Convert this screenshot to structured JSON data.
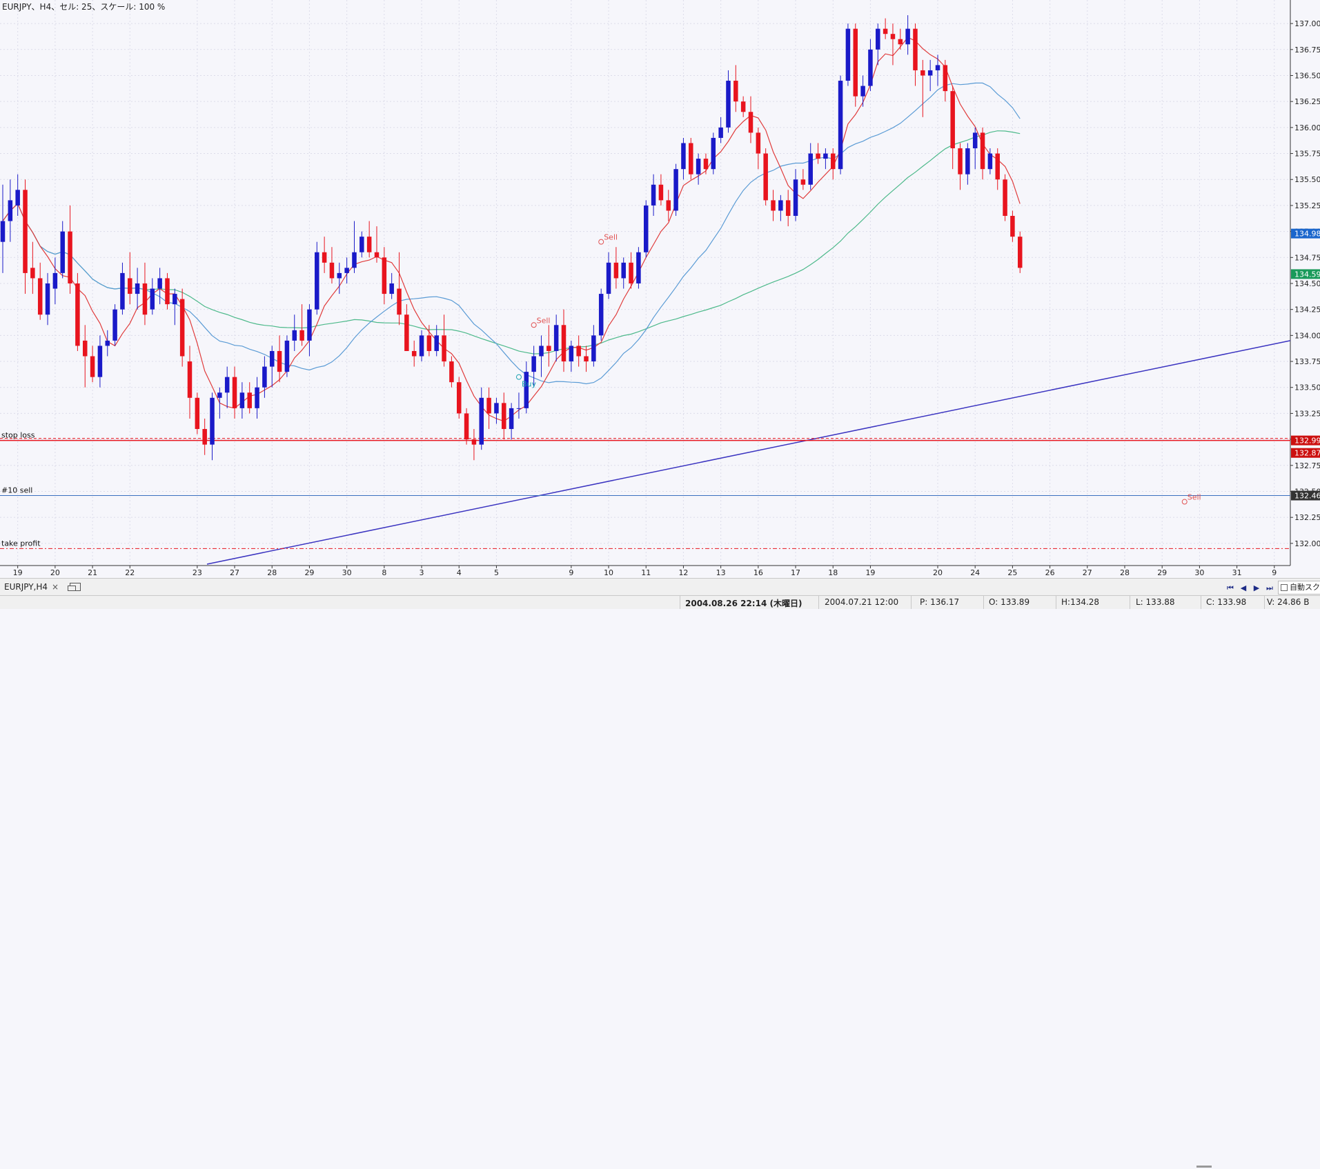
{
  "window": {
    "title": "EURJPY、H4、セル: 25、スケール: 100 %"
  },
  "tab": {
    "label": "EURJPY,H4",
    "close": "×"
  },
  "auto_scroll": {
    "label": "自動スクロール"
  },
  "nav": {
    "first": "⏮",
    "prev": "◀",
    "next": "▶",
    "last": "⏭"
  },
  "status": {
    "current_time": "2004.08.26 22:14 (木曜日)",
    "bar_time": "2004.07.21 12:00",
    "p": "P: 136.17",
    "o": "O: 133.89",
    "h": "H:134.28",
    "l": "L: 133.88",
    "c": "C: 133.98",
    "v": "V: 24.86 B"
  },
  "colors": {
    "background": "#f6f6fb",
    "grid": "#dcdcea",
    "bull": "#1a1ac8",
    "bear": "#e8141e",
    "ma_fast": "#e03c3c",
    "ma_mid": "#5a9bd5",
    "ma_slow": "#4cb98a",
    "trendline": "#3a33c0",
    "stop_loss": "#e8141e",
    "sell_order": "#3a6fbf",
    "take_profit": "#e8141e",
    "buy_signal": "#19a0b0",
    "sell_signal": "#e05050",
    "badge_cur": "#1a66cc",
    "badge_ma": "#1a9a5a",
    "badge_sl": "#cc1010",
    "badge_sell": "#333333"
  },
  "chart_data": {
    "type": "candlestick",
    "symbol": "EURJPY",
    "timeframe": "H4",
    "ylim": [
      131.8,
      137.16
    ],
    "y_ticks": [
      132.0,
      132.25,
      132.5,
      132.75,
      133.0,
      133.25,
      133.5,
      133.75,
      134.0,
      134.25,
      134.5,
      134.75,
      135.0,
      135.25,
      135.5,
      135.75,
      136.0,
      136.25,
      136.5,
      136.75,
      137.0
    ],
    "y_tick_labels": [
      "132.00",
      "132.25",
      "132.50",
      "132.75",
      "133.00",
      "133.25",
      "133.50",
      "133.75",
      "134.00",
      "134.25",
      "134.50",
      "134.75",
      "135.00",
      "135.25",
      "135.50",
      "135.75",
      "136.00",
      "136.25",
      "136.50",
      "136.75",
      "137.00"
    ],
    "x_labels": [
      {
        "label": "19",
        "bar": 2
      },
      {
        "label": "20",
        "bar": 7
      },
      {
        "label": "21",
        "bar": 12
      },
      {
        "label": "22",
        "bar": 17
      },
      {
        "label": "23",
        "bar": 26
      },
      {
        "label": "27",
        "bar": 31
      },
      {
        "label": "28",
        "bar": 36
      },
      {
        "label": "29",
        "bar": 41
      },
      {
        "label": "30",
        "bar": 46
      },
      {
        "label": "8",
        "bar": 51
      },
      {
        "label": "3",
        "bar": 56
      },
      {
        "label": "4",
        "bar": 61
      },
      {
        "label": "5",
        "bar": 66
      },
      {
        "label": "9",
        "bar": 76
      },
      {
        "label": "10",
        "bar": 81
      },
      {
        "label": "11",
        "bar": 86
      },
      {
        "label": "12",
        "bar": 91
      },
      {
        "label": "13",
        "bar": 96
      },
      {
        "label": "16",
        "bar": 101
      },
      {
        "label": "17",
        "bar": 106
      },
      {
        "label": "18",
        "bar": 111
      },
      {
        "label": "19",
        "bar": 116
      },
      {
        "label": "20",
        "bar": 125
      },
      {
        "label": "24",
        "bar": 130
      },
      {
        "label": "25",
        "bar": 135
      },
      {
        "label": "26",
        "bar": 140
      },
      {
        "label": "27",
        "bar": 145
      },
      {
        "label": "28",
        "bar": 150
      },
      {
        "label": "29",
        "bar": 155
      },
      {
        "label": "30",
        "bar": 160
      },
      {
        "label": "31",
        "bar": 165
      },
      {
        "label": "9",
        "bar": 170
      }
    ],
    "candles": [
      {
        "o": 134.9,
        "h": 135.45,
        "l": 134.6,
        "c": 135.1
      },
      {
        "o": 135.1,
        "h": 135.5,
        "l": 134.9,
        "c": 135.3
      },
      {
        "o": 135.25,
        "h": 135.55,
        "l": 135.15,
        "c": 135.4
      },
      {
        "o": 135.4,
        "h": 135.5,
        "l": 134.4,
        "c": 134.6
      },
      {
        "o": 134.65,
        "h": 134.9,
        "l": 134.4,
        "c": 134.55
      },
      {
        "o": 134.55,
        "h": 134.7,
        "l": 134.15,
        "c": 134.2
      },
      {
        "o": 134.2,
        "h": 134.6,
        "l": 134.1,
        "c": 134.5
      },
      {
        "o": 134.45,
        "h": 134.75,
        "l": 134.3,
        "c": 134.6
      },
      {
        "o": 134.6,
        "h": 135.1,
        "l": 134.55,
        "c": 135.0
      },
      {
        "o": 135.0,
        "h": 135.25,
        "l": 134.4,
        "c": 134.5
      },
      {
        "o": 134.5,
        "h": 134.6,
        "l": 133.85,
        "c": 133.9
      },
      {
        "o": 133.95,
        "h": 134.1,
        "l": 133.5,
        "c": 133.8
      },
      {
        "o": 133.8,
        "h": 133.9,
        "l": 133.55,
        "c": 133.6
      },
      {
        "o": 133.6,
        "h": 134.0,
        "l": 133.5,
        "c": 133.9
      },
      {
        "o": 133.9,
        "h": 134.05,
        "l": 133.8,
        "c": 133.95
      },
      {
        "o": 133.95,
        "h": 134.3,
        "l": 133.9,
        "c": 134.25
      },
      {
        "o": 134.25,
        "h": 134.7,
        "l": 134.2,
        "c": 134.6
      },
      {
        "o": 134.55,
        "h": 134.8,
        "l": 134.3,
        "c": 134.4
      },
      {
        "o": 134.4,
        "h": 134.65,
        "l": 134.25,
        "c": 134.5
      },
      {
        "o": 134.5,
        "h": 134.7,
        "l": 134.1,
        "c": 134.2
      },
      {
        "o": 134.25,
        "h": 134.55,
        "l": 134.2,
        "c": 134.45
      },
      {
        "o": 134.45,
        "h": 134.65,
        "l": 134.3,
        "c": 134.55
      },
      {
        "o": 134.55,
        "h": 134.6,
        "l": 134.25,
        "c": 134.3
      },
      {
        "o": 134.3,
        "h": 134.45,
        "l": 134.1,
        "c": 134.4
      },
      {
        "o": 134.35,
        "h": 134.45,
        "l": 133.7,
        "c": 133.8
      },
      {
        "o": 133.75,
        "h": 133.9,
        "l": 133.2,
        "c": 133.4
      },
      {
        "o": 133.4,
        "h": 133.45,
        "l": 133.05,
        "c": 133.1
      },
      {
        "o": 133.1,
        "h": 133.2,
        "l": 132.85,
        "c": 132.95
      },
      {
        "o": 132.95,
        "h": 133.45,
        "l": 132.8,
        "c": 133.4
      },
      {
        "o": 133.4,
        "h": 133.5,
        "l": 133.2,
        "c": 133.45
      },
      {
        "o": 133.45,
        "h": 133.7,
        "l": 133.3,
        "c": 133.6
      },
      {
        "o": 133.6,
        "h": 133.7,
        "l": 133.2,
        "c": 133.3
      },
      {
        "o": 133.3,
        "h": 133.55,
        "l": 133.2,
        "c": 133.45
      },
      {
        "o": 133.45,
        "h": 133.55,
        "l": 133.25,
        "c": 133.3
      },
      {
        "o": 133.3,
        "h": 133.6,
        "l": 133.2,
        "c": 133.5
      },
      {
        "o": 133.5,
        "h": 133.8,
        "l": 133.4,
        "c": 133.7
      },
      {
        "o": 133.7,
        "h": 133.9,
        "l": 133.5,
        "c": 133.85
      },
      {
        "o": 133.85,
        "h": 134.0,
        "l": 133.55,
        "c": 133.65
      },
      {
        "o": 133.65,
        "h": 134.0,
        "l": 133.6,
        "c": 133.95
      },
      {
        "o": 133.95,
        "h": 134.2,
        "l": 133.85,
        "c": 134.05
      },
      {
        "o": 134.05,
        "h": 134.3,
        "l": 133.9,
        "c": 133.95
      },
      {
        "o": 133.95,
        "h": 134.3,
        "l": 133.8,
        "c": 134.25
      },
      {
        "o": 134.25,
        "h": 134.9,
        "l": 134.2,
        "c": 134.8
      },
      {
        "o": 134.8,
        "h": 134.95,
        "l": 134.6,
        "c": 134.7
      },
      {
        "o": 134.7,
        "h": 134.85,
        "l": 134.5,
        "c": 134.55
      },
      {
        "o": 134.55,
        "h": 134.7,
        "l": 134.4,
        "c": 134.6
      },
      {
        "o": 134.6,
        "h": 134.75,
        "l": 134.5,
        "c": 134.65
      },
      {
        "o": 134.65,
        "h": 135.1,
        "l": 134.6,
        "c": 134.8
      },
      {
        "o": 134.8,
        "h": 135.0,
        "l": 134.75,
        "c": 134.95
      },
      {
        "o": 134.95,
        "h": 135.1,
        "l": 134.75,
        "c": 134.8
      },
      {
        "o": 134.8,
        "h": 135.05,
        "l": 134.7,
        "c": 134.75
      },
      {
        "o": 134.75,
        "h": 134.85,
        "l": 134.3,
        "c": 134.4
      },
      {
        "o": 134.4,
        "h": 134.6,
        "l": 134.35,
        "c": 134.5
      },
      {
        "o": 134.45,
        "h": 134.8,
        "l": 134.1,
        "c": 134.2
      },
      {
        "o": 134.2,
        "h": 134.3,
        "l": 133.85,
        "c": 133.85
      },
      {
        "o": 133.85,
        "h": 133.95,
        "l": 133.7,
        "c": 133.8
      },
      {
        "o": 133.8,
        "h": 134.05,
        "l": 133.75,
        "c": 134.0
      },
      {
        "o": 134.0,
        "h": 134.1,
        "l": 133.8,
        "c": 133.85
      },
      {
        "o": 133.85,
        "h": 134.1,
        "l": 133.8,
        "c": 134.0
      },
      {
        "o": 134.0,
        "h": 134.2,
        "l": 133.7,
        "c": 133.75
      },
      {
        "o": 133.75,
        "h": 133.8,
        "l": 133.5,
        "c": 133.55
      },
      {
        "o": 133.55,
        "h": 133.6,
        "l": 133.2,
        "c": 133.25
      },
      {
        "o": 133.25,
        "h": 133.3,
        "l": 132.95,
        "c": 133.0
      },
      {
        "o": 133.0,
        "h": 133.1,
        "l": 132.8,
        "c": 132.95
      },
      {
        "o": 132.95,
        "h": 133.5,
        "l": 132.9,
        "c": 133.4
      },
      {
        "o": 133.4,
        "h": 133.5,
        "l": 133.1,
        "c": 133.25
      },
      {
        "o": 133.25,
        "h": 133.4,
        "l": 133.15,
        "c": 133.35
      },
      {
        "o": 133.35,
        "h": 133.45,
        "l": 133.0,
        "c": 133.1
      },
      {
        "o": 133.1,
        "h": 133.35,
        "l": 133.0,
        "c": 133.3
      },
      {
        "o": 133.3,
        "h": 133.45,
        "l": 133.2,
        "c": 133.3
      },
      {
        "o": 133.3,
        "h": 133.75,
        "l": 133.25,
        "c": 133.65
      },
      {
        "o": 133.65,
        "h": 133.9,
        "l": 133.5,
        "c": 133.8
      },
      {
        "o": 133.8,
        "h": 134.0,
        "l": 133.6,
        "c": 133.9
      },
      {
        "o": 133.9,
        "h": 134.1,
        "l": 133.7,
        "c": 133.85
      },
      {
        "o": 133.85,
        "h": 134.2,
        "l": 133.75,
        "c": 134.1
      },
      {
        "o": 134.1,
        "h": 134.25,
        "l": 133.65,
        "c": 133.75
      },
      {
        "o": 133.75,
        "h": 133.95,
        "l": 133.65,
        "c": 133.9
      },
      {
        "o": 133.9,
        "h": 134.0,
        "l": 133.7,
        "c": 133.8
      },
      {
        "o": 133.8,
        "h": 133.9,
        "l": 133.65,
        "c": 133.75
      },
      {
        "o": 133.75,
        "h": 134.1,
        "l": 133.7,
        "c": 134.0
      },
      {
        "o": 134.0,
        "h": 134.45,
        "l": 133.95,
        "c": 134.4
      },
      {
        "o": 134.4,
        "h": 134.8,
        "l": 134.35,
        "c": 134.7
      },
      {
        "o": 134.7,
        "h": 134.85,
        "l": 134.45,
        "c": 134.55
      },
      {
        "o": 134.55,
        "h": 134.75,
        "l": 134.45,
        "c": 134.7
      },
      {
        "o": 134.7,
        "h": 134.8,
        "l": 134.45,
        "c": 134.5
      },
      {
        "o": 134.5,
        "h": 134.85,
        "l": 134.45,
        "c": 134.8
      },
      {
        "o": 134.8,
        "h": 135.3,
        "l": 134.75,
        "c": 135.25
      },
      {
        "o": 135.25,
        "h": 135.55,
        "l": 135.15,
        "c": 135.45
      },
      {
        "o": 135.45,
        "h": 135.55,
        "l": 135.25,
        "c": 135.3
      },
      {
        "o": 135.3,
        "h": 135.4,
        "l": 135.1,
        "c": 135.2
      },
      {
        "o": 135.2,
        "h": 135.65,
        "l": 135.15,
        "c": 135.6
      },
      {
        "o": 135.6,
        "h": 135.9,
        "l": 135.5,
        "c": 135.85
      },
      {
        "o": 135.85,
        "h": 135.9,
        "l": 135.5,
        "c": 135.55
      },
      {
        "o": 135.55,
        "h": 135.75,
        "l": 135.45,
        "c": 135.7
      },
      {
        "o": 135.7,
        "h": 135.75,
        "l": 135.55,
        "c": 135.6
      },
      {
        "o": 135.6,
        "h": 135.95,
        "l": 135.55,
        "c": 135.9
      },
      {
        "o": 135.9,
        "h": 136.1,
        "l": 135.85,
        "c": 136.0
      },
      {
        "o": 136.0,
        "h": 136.55,
        "l": 135.95,
        "c": 136.45
      },
      {
        "o": 136.45,
        "h": 136.6,
        "l": 136.15,
        "c": 136.25
      },
      {
        "o": 136.25,
        "h": 136.3,
        "l": 136.1,
        "c": 136.15
      },
      {
        "o": 136.15,
        "h": 136.3,
        "l": 135.85,
        "c": 135.95
      },
      {
        "o": 135.95,
        "h": 136.0,
        "l": 135.6,
        "c": 135.75
      },
      {
        "o": 135.75,
        "h": 135.8,
        "l": 135.25,
        "c": 135.3
      },
      {
        "o": 135.3,
        "h": 135.4,
        "l": 135.1,
        "c": 135.2
      },
      {
        "o": 135.2,
        "h": 135.35,
        "l": 135.1,
        "c": 135.3
      },
      {
        "o": 135.3,
        "h": 135.4,
        "l": 135.05,
        "c": 135.15
      },
      {
        "o": 135.15,
        "h": 135.6,
        "l": 135.1,
        "c": 135.5
      },
      {
        "o": 135.5,
        "h": 135.6,
        "l": 135.4,
        "c": 135.45
      },
      {
        "o": 135.45,
        "h": 135.85,
        "l": 135.4,
        "c": 135.75
      },
      {
        "o": 135.75,
        "h": 135.85,
        "l": 135.65,
        "c": 135.7
      },
      {
        "o": 135.7,
        "h": 135.8,
        "l": 135.6,
        "c": 135.75
      },
      {
        "o": 135.75,
        "h": 135.8,
        "l": 135.5,
        "c": 135.6
      },
      {
        "o": 135.6,
        "h": 136.5,
        "l": 135.55,
        "c": 136.45
      },
      {
        "o": 136.45,
        "h": 137.0,
        "l": 136.4,
        "c": 136.95
      },
      {
        "o": 136.95,
        "h": 137.0,
        "l": 136.2,
        "c": 136.3
      },
      {
        "o": 136.3,
        "h": 136.5,
        "l": 136.2,
        "c": 136.4
      },
      {
        "o": 136.4,
        "h": 136.85,
        "l": 136.35,
        "c": 136.75
      },
      {
        "o": 136.75,
        "h": 137.0,
        "l": 136.6,
        "c": 136.95
      },
      {
        "o": 136.95,
        "h": 137.05,
        "l": 136.85,
        "c": 136.9
      },
      {
        "o": 136.9,
        "h": 137.0,
        "l": 136.6,
        "c": 136.85
      },
      {
        "o": 136.85,
        "h": 136.95,
        "l": 136.75,
        "c": 136.8
      },
      {
        "o": 136.8,
        "h": 137.08,
        "l": 136.7,
        "c": 136.95
      },
      {
        "o": 136.95,
        "h": 137.0,
        "l": 136.4,
        "c": 136.55
      },
      {
        "o": 136.55,
        "h": 136.65,
        "l": 136.1,
        "c": 136.5
      },
      {
        "o": 136.5,
        "h": 136.65,
        "l": 136.35,
        "c": 136.55
      },
      {
        "o": 136.55,
        "h": 136.7,
        "l": 136.4,
        "c": 136.6
      },
      {
        "o": 136.6,
        "h": 136.65,
        "l": 136.25,
        "c": 136.35
      },
      {
        "o": 136.35,
        "h": 136.4,
        "l": 135.6,
        "c": 135.8
      },
      {
        "o": 135.8,
        "h": 135.85,
        "l": 135.4,
        "c": 135.55
      },
      {
        "o": 135.55,
        "h": 135.85,
        "l": 135.45,
        "c": 135.8
      },
      {
        "o": 135.8,
        "h": 136.0,
        "l": 135.6,
        "c": 135.95
      },
      {
        "o": 135.95,
        "h": 136.0,
        "l": 135.5,
        "c": 135.6
      },
      {
        "o": 135.6,
        "h": 135.8,
        "l": 135.55,
        "c": 135.75
      },
      {
        "o": 135.75,
        "h": 135.8,
        "l": 135.4,
        "c": 135.5
      },
      {
        "o": 135.5,
        "h": 135.55,
        "l": 135.1,
        "c": 135.15
      },
      {
        "o": 135.15,
        "h": 135.2,
        "l": 134.9,
        "c": 134.95
      },
      {
        "o": 134.95,
        "h": 135.0,
        "l": 134.6,
        "c": 134.65
      }
    ]
  },
  "overlays": {
    "levels": [
      {
        "name": "stop_loss",
        "label": "stop loss",
        "price": 132.99,
        "style": "solid"
      },
      {
        "name": "sell_order",
        "label": "#10 sell",
        "price": 132.46,
        "style": "solid"
      },
      {
        "name": "take_profit",
        "label": "take profit",
        "price": 131.95,
        "style": "dashdot"
      }
    ],
    "trendline": {
      "from_price": 131.8,
      "to_price": 133.95
    },
    "signals": [
      {
        "label": "Buy",
        "bar": 69,
        "price": 133.6
      },
      {
        "label": "Sell",
        "bar": 80,
        "price": 134.9
      },
      {
        "label": "Sell",
        "bar": 71,
        "price": 134.1
      },
      {
        "label": "Sell",
        "bar": 158,
        "price": 132.4
      }
    ],
    "price_badges": [
      {
        "name": "ma_mid",
        "text": "134.98",
        "price": 134.98
      },
      {
        "name": "ma_slow",
        "text": "134.59",
        "price": 134.59
      },
      {
        "name": "stop_loss",
        "text": "132.99",
        "price": 132.99
      },
      {
        "name": "current",
        "text": "132.87",
        "price": 132.87
      },
      {
        "name": "sell",
        "text": "132.46",
        "price": 132.46
      }
    ]
  }
}
